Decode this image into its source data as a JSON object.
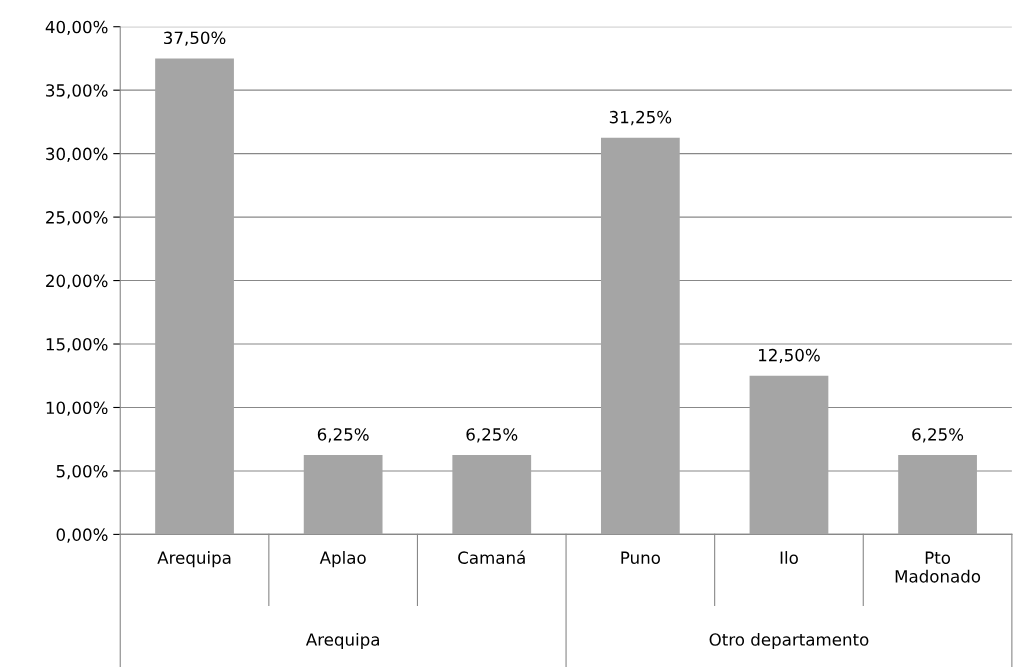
{
  "chart_data": {
    "type": "bar",
    "categories": [
      "Arequipa",
      "Aplao",
      "Camaná",
      "Puno",
      "Ilo",
      "Pto\nMadonado"
    ],
    "values": [
      37.5,
      6.25,
      6.25,
      31.25,
      12.5,
      6.25
    ],
    "value_labels": [
      "37,50%",
      "6,25%",
      "6,25%",
      "31,25%",
      "12,50%",
      "6,25%"
    ],
    "color": "#a5a5a5",
    "ylim": [
      0,
      40
    ],
    "yticks": [
      {
        "value": 0,
        "label": "0,00%"
      },
      {
        "value": 5,
        "label": "5,00%"
      },
      {
        "value": 10,
        "label": "10,00%"
      },
      {
        "value": 15,
        "label": "15,00%"
      },
      {
        "value": 20,
        "label": "20,00%"
      },
      {
        "value": 25,
        "label": "25,00%"
      },
      {
        "value": 30,
        "label": "30,00%"
      },
      {
        "value": 35,
        "label": "35,00%"
      },
      {
        "value": 40,
        "label": "40,00%"
      }
    ],
    "grid": "y",
    "annotations": [
      "Arequipa",
      "Otro departamento"
    ]
  }
}
